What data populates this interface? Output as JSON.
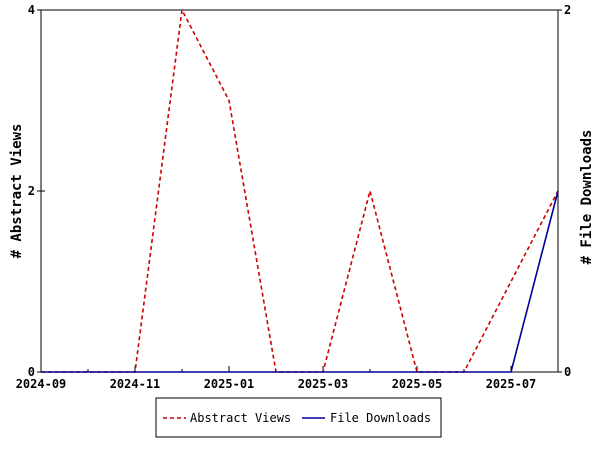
{
  "chart_data": {
    "type": "line",
    "x_tick_labels": [
      "2024-09",
      "2024-11",
      "2025-01",
      "2025-03",
      "2025-05",
      "2025-07"
    ],
    "x_ticks": [
      "2024-09",
      "2024-10",
      "2024-11",
      "2024-12",
      "2025-01",
      "2025-02",
      "2025-03",
      "2025-04",
      "2025-05",
      "2025-06",
      "2025-07",
      "2025-08"
    ],
    "xlim": [
      "2024-09",
      "2025-08"
    ],
    "y_left": {
      "label": "# Abstract Views",
      "ylim": [
        0,
        4
      ],
      "tick_labels": [
        "0",
        "2",
        "4"
      ]
    },
    "y_right": {
      "label": "# File Downloads",
      "ylim": [
        0,
        2
      ],
      "tick_labels": [
        "0",
        "2"
      ]
    },
    "series": [
      {
        "name": "Abstract Views",
        "axis": "left",
        "color": "#cc0000",
        "dash": "dashed",
        "x": [
          "2024-09",
          "2024-10",
          "2024-11",
          "2024-12",
          "2025-01",
          "2025-02",
          "2025-03",
          "2025-04",
          "2025-05",
          "2025-06",
          "2025-07",
          "2025-08"
        ],
        "values": [
          0,
          0,
          0,
          4,
          3,
          0,
          0,
          2,
          0,
          0,
          1,
          2
        ]
      },
      {
        "name": "File Downloads",
        "axis": "right",
        "color": "#000099",
        "dash": "solid",
        "x": [
          "2024-09",
          "2024-10",
          "2024-11",
          "2024-12",
          "2025-01",
          "2025-02",
          "2025-03",
          "2025-04",
          "2025-05",
          "2025-06",
          "2025-07",
          "2025-08"
        ],
        "values": [
          0,
          0,
          0,
          0,
          0,
          0,
          0,
          0,
          0,
          0,
          0,
          1
        ]
      }
    ],
    "legend": {
      "position": "bottom-center"
    },
    "grid": false
  }
}
